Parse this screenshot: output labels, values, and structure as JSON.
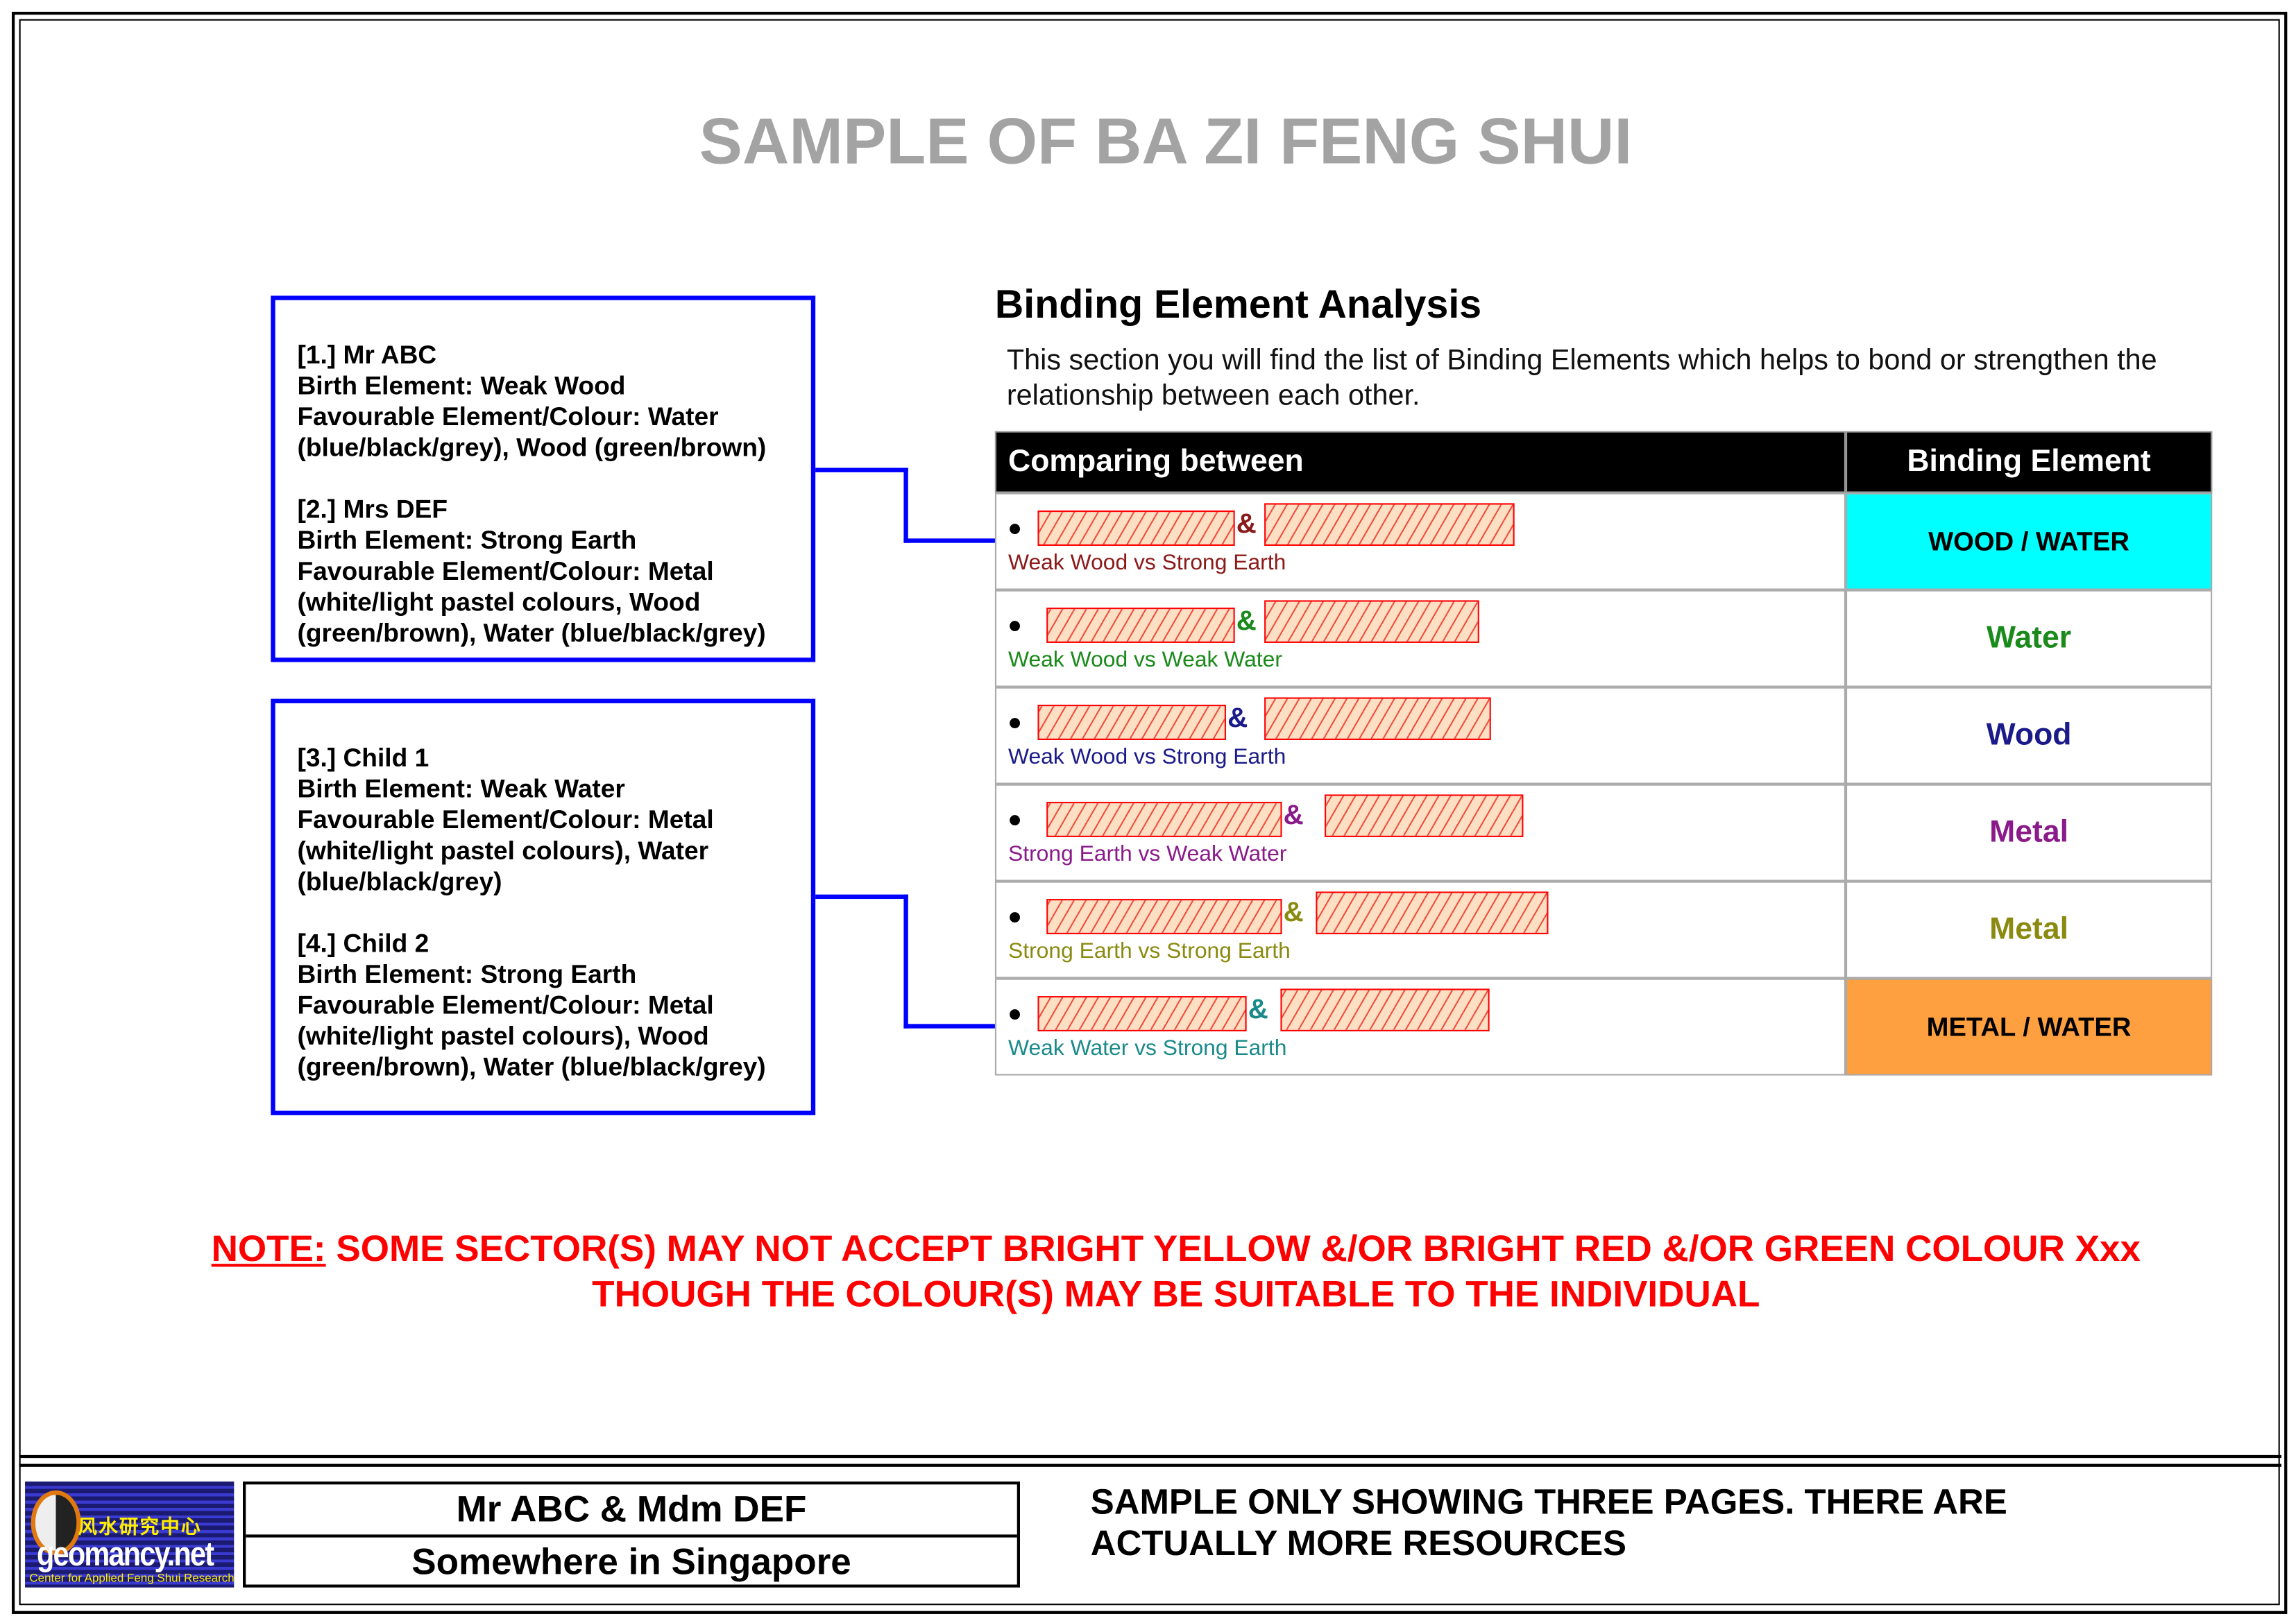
{
  "title": "SAMPLE OF BA ZI FENG SHUI",
  "profiles": [
    {
      "entries": [
        "[1.] Mr ABC\nBirth Element: Weak Wood\nFavourable Element/Colour: Water (blue/black/grey), Wood (green/brown)",
        "[2.] Mrs DEF\nBirth Element: Strong Earth\nFavourable Element/Colour: Metal (white/light pastel colours, Wood (green/brown), Water (blue/black/grey)"
      ]
    },
    {
      "entries": [
        "[3.] Child 1\nBirth Element: Weak Water\nFavourable Element/Colour: Metal (white/light pastel colours), Water (blue/black/grey)",
        "[4.] Child 2\nBirth Element: Strong Earth\nFavourable Element/Colour: Metal (white/light pastel colours), Wood (green/brown), Water (blue/black/grey)"
      ]
    }
  ],
  "analysis": {
    "heading": "Binding Element Analysis",
    "description": "This section you will find the list of Binding Elements which helps to bond or strengthen the relationship between each other.",
    "columns": [
      "Comparing between",
      "Binding Element"
    ],
    "rows": [
      {
        "amp": "&",
        "comparison": "Weak Wood vs Strong Earth",
        "binding": "WOOD / WATER",
        "text_color": "#8b1a1a",
        "binding_color": "#000000",
        "binding_bg": "#00ffff"
      },
      {
        "amp": "&",
        "comparison": "Weak Wood vs Weak Water",
        "binding": "Water",
        "text_color": "#1a8a1a",
        "binding_color": "#1a8a1a",
        "binding_bg": ""
      },
      {
        "amp": "&",
        "comparison": "Weak Wood vs Strong Earth",
        "binding": "Wood",
        "text_color": "#1a1a8a",
        "binding_color": "#1a1a8a",
        "binding_bg": ""
      },
      {
        "amp": "&",
        "comparison": "Strong Earth vs Weak Water",
        "binding": "Metal",
        "text_color": "#8a1a8a",
        "binding_color": "#8a1a8a",
        "binding_bg": ""
      },
      {
        "amp": "&",
        "comparison": "Strong Earth vs Strong Earth",
        "binding": "Metal",
        "text_color": "#8a8a10",
        "binding_color": "#8a8a10",
        "binding_bg": ""
      },
      {
        "amp": "&",
        "comparison": "Weak Water vs Strong Earth",
        "binding": "METAL / WATER",
        "text_color": "#1a8a8a",
        "binding_color": "#000000",
        "binding_bg": "#ffa040"
      }
    ]
  },
  "note": {
    "label": "NOTE:",
    "line1": " SOME SECTOR(S) MAY NOT ACCEPT BRIGHT YELLOW &/OR BRIGHT RED &/OR GREEN COLOUR Xxx",
    "line2": "THOUGH THE COLOUR(S) MAY BE SUITABLE TO THE INDIVIDUAL"
  },
  "footer": {
    "logo_text": "geomancy.net",
    "logo_chinese": "风水研究中心",
    "logo_subtitle": "Center for Applied Feng Shui Research",
    "names": "Mr ABC & Mdm DEF",
    "location": "Somewhere in Singapore",
    "message": [
      "SAMPLE ONLY SHOWING THREE PAGES. THERE ARE",
      "ACTUALLY MORE RESOURCES"
    ]
  },
  "colors": {
    "box_border": "#0000ff",
    "title": "#a3a3a3",
    "note": "#ff0000"
  }
}
